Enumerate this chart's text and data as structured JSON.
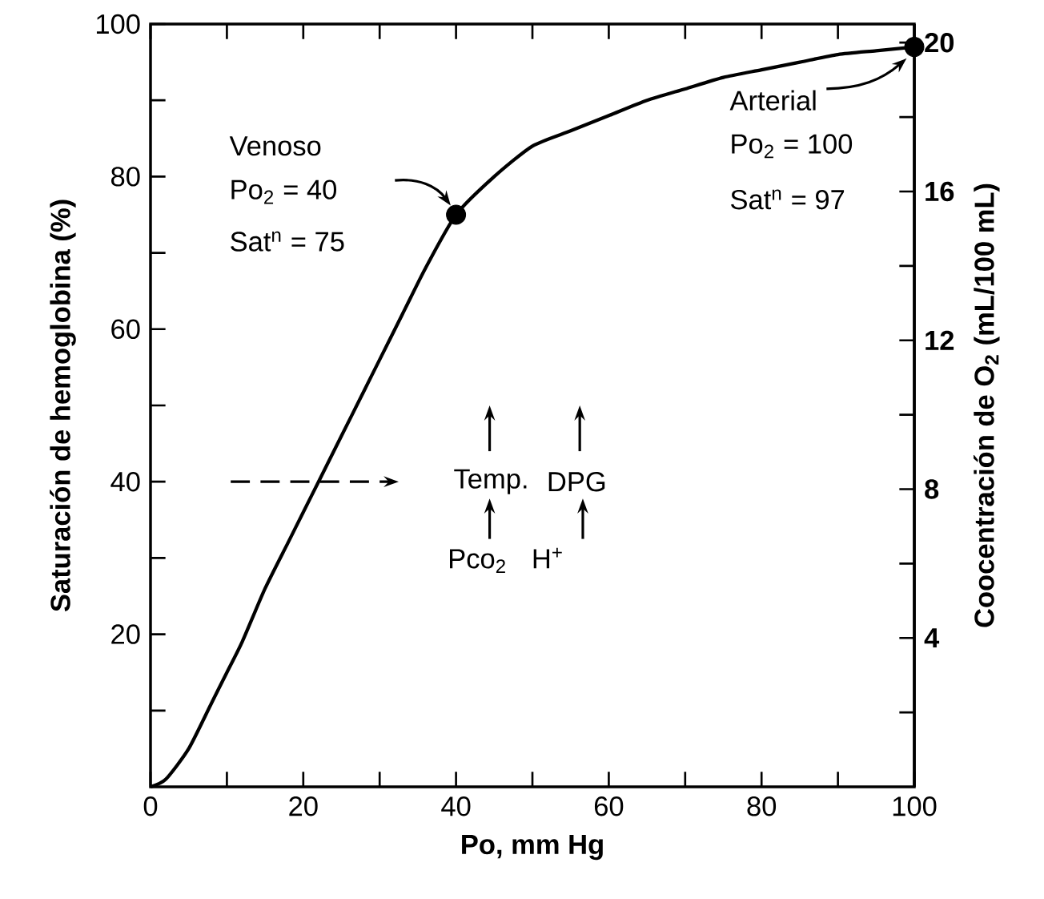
{
  "chart_data": {
    "type": "line",
    "xlabel": "Po, mm Hg",
    "ylabel": "Saturación de hemoglobina (%)",
    "y2label": "Coocentración de O$_{2}$ (mL/100 mL)",
    "xlim": [
      0,
      100
    ],
    "ylim": [
      0,
      100
    ],
    "y2lim": [
      0,
      20.5
    ],
    "xticks": [
      0,
      {
        "value": 10,
        "label": null
      },
      20,
      {
        "value": 30,
        "label": null
      },
      40,
      {
        "value": 50,
        "label": null
      },
      60,
      {
        "value": 70,
        "label": null
      },
      80,
      {
        "value": 90,
        "label": null
      },
      100
    ],
    "yticks": [
      {
        "value": 10,
        "label": null
      },
      20,
      {
        "value": 30,
        "label": null
      },
      40,
      {
        "value": 50,
        "label": null
      },
      60,
      {
        "value": 70,
        "label": null
      },
      80,
      {
        "value": 90,
        "label": null
      },
      100
    ],
    "y2ticks": [
      {
        "value": 2,
        "label": null
      },
      4,
      {
        "value": 6,
        "label": null
      },
      8,
      {
        "value": 10,
        "label": null
      },
      12,
      {
        "value": 14,
        "label": null
      },
      16,
      {
        "value": 18,
        "label": null
      },
      20
    ],
    "series": [
      {
        "color": "#000000",
        "marker": "none",
        "x": [
          0,
          2,
          5,
          8,
          10,
          12,
          15,
          18,
          20,
          22,
          25,
          28,
          30,
          33,
          36,
          40,
          45,
          50,
          55,
          60,
          65,
          70,
          75,
          80,
          85,
          90,
          95,
          100
        ],
        "values": [
          0,
          1,
          5,
          11,
          15,
          19,
          26,
          32,
          36,
          40,
          46,
          52,
          56,
          62,
          68,
          75,
          80,
          84,
          86,
          88,
          90,
          91.5,
          93,
          94,
          95,
          96,
          96.5,
          97
        ]
      },
      {
        "type": "scatter",
        "color": "#000000",
        "marker": "circle",
        "x": [
          40,
          100
        ],
        "values": [
          75,
          97
        ]
      }
    ],
    "annotations": [
      "Venoso",
      "Po$_{2}$ = 40",
      "Sat$^{n}$ = 75",
      "Arterial",
      "Po$_{2}$ = 100",
      "Sat$^{n}$ = 97",
      "Temp.",
      "DPG",
      "Pco$_{2}$",
      "H$^{+}$"
    ]
  }
}
